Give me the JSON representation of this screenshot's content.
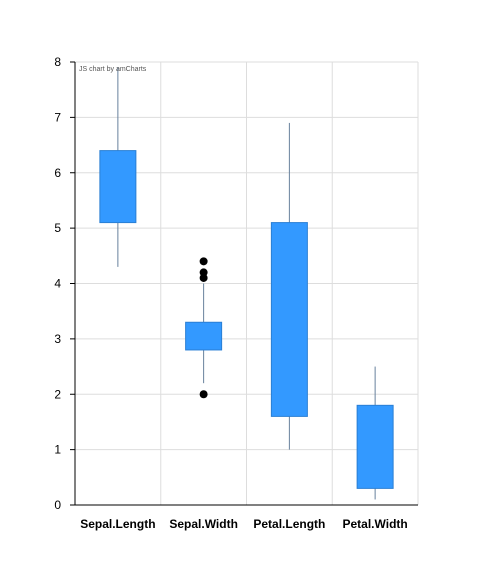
{
  "chart_data": {
    "type": "boxplot",
    "credit": "JS chart by amCharts",
    "categories": [
      "Sepal.Length",
      "Sepal.Width",
      "Petal.Length",
      "Petal.Width"
    ],
    "boxes": [
      {
        "category": "Sepal.Length",
        "min": 4.3,
        "q1": 5.1,
        "q3": 6.4,
        "max": 7.9,
        "outliers": []
      },
      {
        "category": "Sepal.Width",
        "min": 2.2,
        "q1": 2.8,
        "q3": 3.3,
        "max": 4.0,
        "outliers": [
          2.0,
          4.1,
          4.2,
          4.4
        ]
      },
      {
        "category": "Petal.Length",
        "min": 1.0,
        "q1": 1.6,
        "q3": 5.1,
        "max": 6.9,
        "outliers": []
      },
      {
        "category": "Petal.Width",
        "min": 0.1,
        "q1": 0.3,
        "q3": 1.8,
        "max": 2.5,
        "outliers": []
      }
    ],
    "ylim": [
      0,
      8
    ],
    "yticks": [
      "0",
      "1",
      "2",
      "3",
      "4",
      "5",
      "6",
      "7",
      "8"
    ],
    "grid": true,
    "colors": {
      "box": "#3399ff",
      "box_stroke": "#2a7fd4",
      "whisker": "#67809c",
      "outlier": "#000000",
      "grid": "#dddddd",
      "axis": "#000000"
    }
  }
}
